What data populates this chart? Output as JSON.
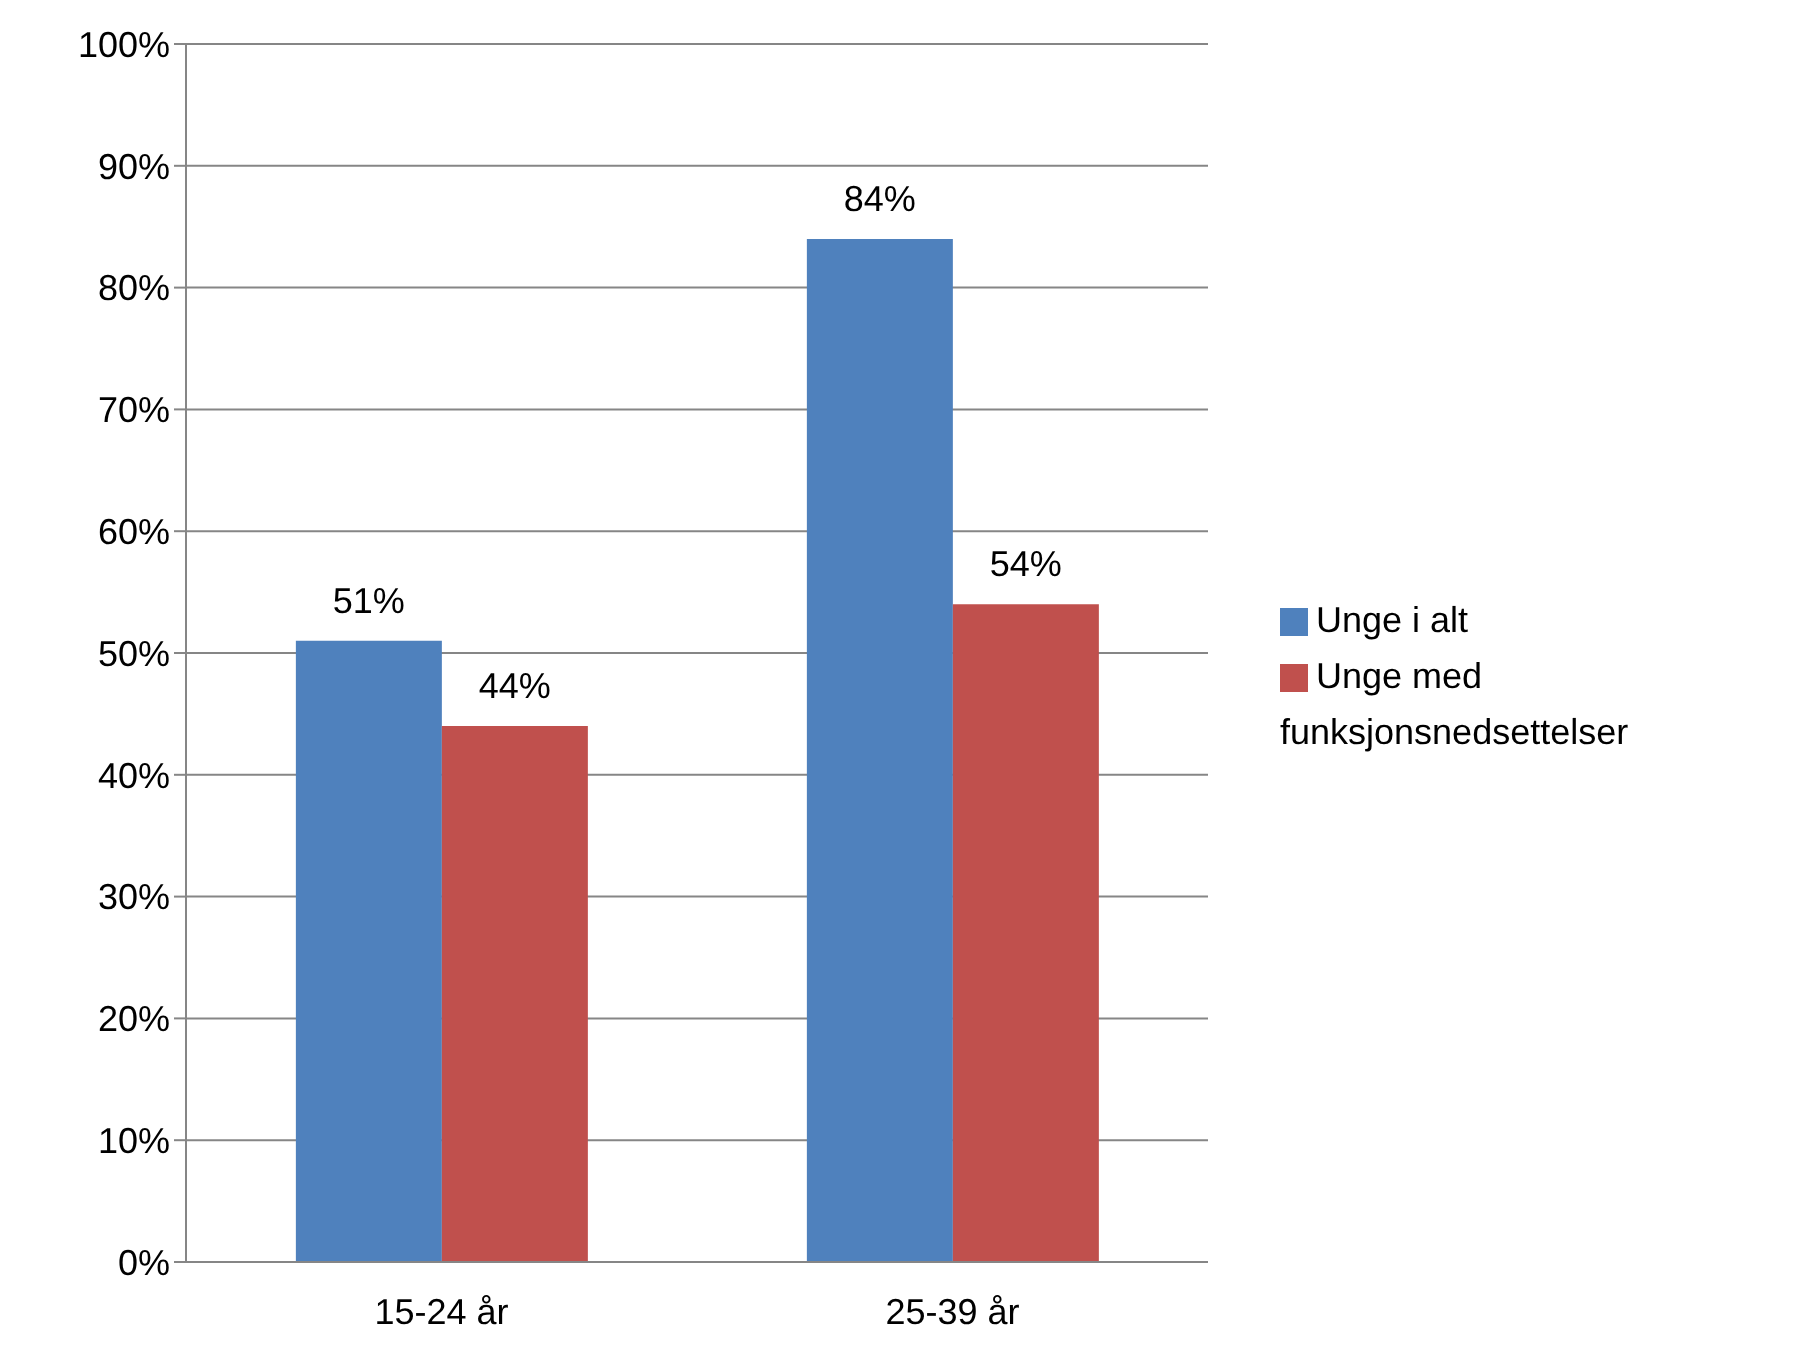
{
  "chart_data": {
    "type": "bar",
    "categories": [
      "15-24 år",
      "25-39 år"
    ],
    "series": [
      {
        "name": "Unge i alt",
        "color": "#4f81bd",
        "values": [
          51,
          84
        ],
        "value_labels": [
          "51%",
          "84%"
        ]
      },
      {
        "name": "Unge med funksjonsnedsettelser",
        "color": "#c0504d",
        "values": [
          44,
          54
        ],
        "value_labels": [
          "44%",
          "54%"
        ]
      }
    ],
    "ylim": [
      0,
      100
    ],
    "yticks": [
      {
        "value": 0,
        "label": "0%"
      },
      {
        "value": 10,
        "label": "10%"
      },
      {
        "value": 20,
        "label": "20%"
      },
      {
        "value": 30,
        "label": "30%"
      },
      {
        "value": 40,
        "label": "40%"
      },
      {
        "value": 50,
        "label": "50%"
      },
      {
        "value": 60,
        "label": "60%"
      },
      {
        "value": 70,
        "label": "70%"
      },
      {
        "value": 80,
        "label": "80%"
      },
      {
        "value": 90,
        "label": "90%"
      },
      {
        "value": 100,
        "label": "100%"
      }
    ],
    "grid": "y",
    "legend": "right"
  }
}
